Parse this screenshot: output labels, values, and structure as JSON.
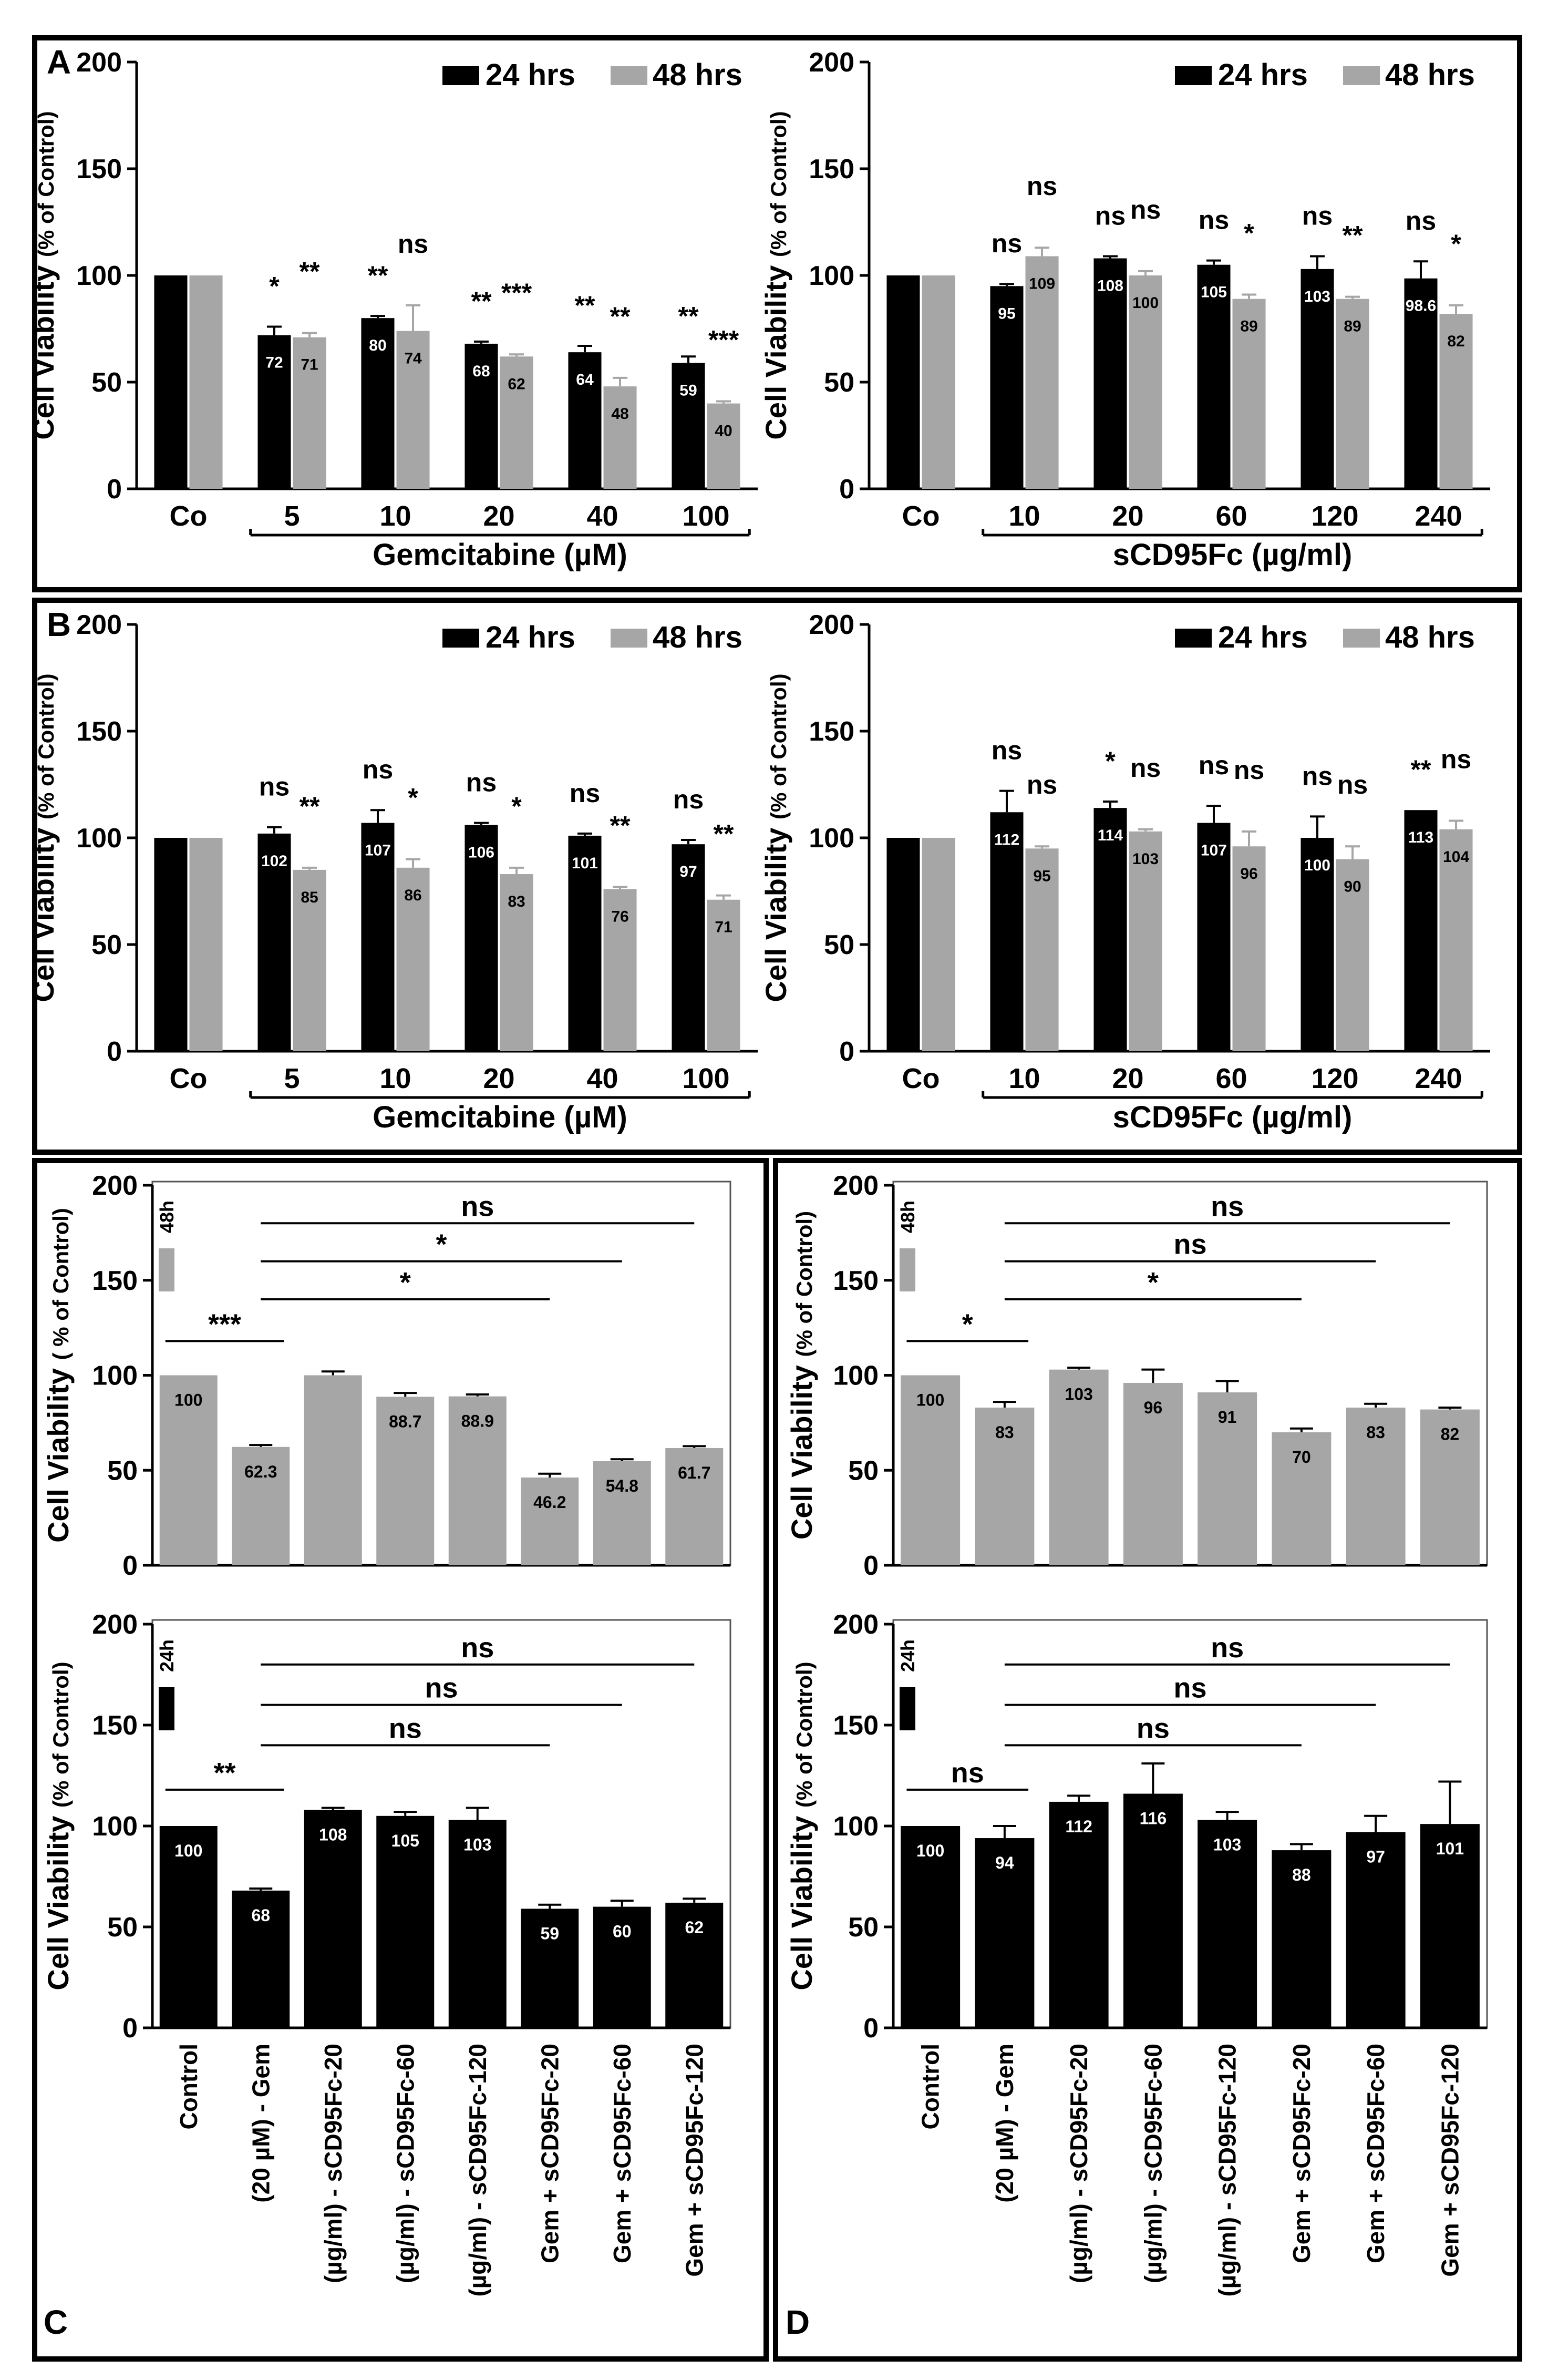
{
  "colors": {
    "black_series": "#000000",
    "gray_series": "#a6a6a6",
    "frame": "#000000"
  },
  "panel_letters": [
    "A",
    "B",
    "C",
    "D"
  ],
  "common": {
    "ylabel_main": "Cell Viability",
    "ylabel_sub": "(% of Control)",
    "ylabel_sub_alt": "( % of Control)",
    "yticks": [
      "0",
      "50",
      "100",
      "150",
      "200"
    ],
    "legend_24": "24 hrs",
    "legend_48": "48 hrs",
    "control_cat": "Co",
    "label_48h": "48h",
    "label_24h": "24h"
  },
  "chart_data": [
    {
      "id": "A-left",
      "panel": "A",
      "type": "bar",
      "ylim": [
        0,
        200
      ],
      "legend": "top-right",
      "xlabel": "Gemcitabine (µM)",
      "categories": [
        "Co",
        "5",
        "10",
        "20",
        "40",
        "100"
      ],
      "series": [
        {
          "name": "24 hrs",
          "values": [
            100,
            72,
            80,
            68,
            64,
            59
          ],
          "errors": [
            0,
            4,
            1,
            1,
            3,
            3
          ],
          "labels": [
            "",
            "72",
            "80",
            "68",
            "64",
            "59"
          ],
          "sig": [
            "",
            "*",
            "**",
            "**",
            "**",
            "**"
          ]
        },
        {
          "name": "48 hrs",
          "values": [
            100,
            71,
            74,
            62,
            48,
            40
          ],
          "errors": [
            0,
            2,
            12,
            1,
            4,
            1
          ],
          "labels": [
            "",
            "71",
            "74",
            "62",
            "48",
            "40"
          ],
          "sig": [
            "",
            "**",
            "ns",
            "***",
            "**",
            "***"
          ]
        }
      ]
    },
    {
      "id": "A-right",
      "panel": "A",
      "type": "bar",
      "ylim": [
        0,
        200
      ],
      "legend": "top-right",
      "xlabel": "sCD95Fc (µg/ml)",
      "categories": [
        "Co",
        "10",
        "20",
        "60",
        "120",
        "240"
      ],
      "series": [
        {
          "name": "24 hrs",
          "values": [
            100,
            95,
            108,
            105,
            103,
            98.6
          ],
          "errors": [
            0,
            1,
            1,
            2,
            6,
            8
          ],
          "labels": [
            "",
            "95",
            "108",
            "105",
            "103",
            "98.6"
          ],
          "sig": [
            "",
            "ns",
            "ns",
            "ns",
            "ns",
            "ns"
          ]
        },
        {
          "name": "48 hrs",
          "values": [
            100,
            109,
            100,
            89,
            89,
            82
          ],
          "errors": [
            0,
            4,
            2,
            2,
            1,
            4
          ],
          "labels": [
            "",
            "109",
            "100",
            "89",
            "89",
            "82"
          ],
          "sig": [
            "",
            "ns",
            "ns",
            "*",
            "**",
            "*"
          ]
        }
      ]
    },
    {
      "id": "B-left",
      "panel": "B",
      "type": "bar",
      "ylim": [
        0,
        200
      ],
      "legend": "top-right",
      "xlabel": "Gemcitabine (µM)",
      "categories": [
        "Co",
        "5",
        "10",
        "20",
        "40",
        "100"
      ],
      "series": [
        {
          "name": "24 hrs",
          "values": [
            100,
            102,
            107,
            106,
            101,
            97
          ],
          "errors": [
            0,
            3,
            6,
            1,
            1,
            2
          ],
          "labels": [
            "",
            "102",
            "107",
            "106",
            "101",
            "97"
          ],
          "sig": [
            "",
            "ns",
            "ns",
            "ns",
            "ns",
            "ns"
          ]
        },
        {
          "name": "48 hrs",
          "values": [
            100,
            85,
            86,
            83,
            76,
            71
          ],
          "errors": [
            0,
            1,
            4,
            3,
            1,
            2
          ],
          "labels": [
            "",
            "85",
            "86",
            "83",
            "76",
            "71"
          ],
          "sig": [
            "",
            "**",
            "*",
            "*",
            "**",
            "**"
          ]
        }
      ]
    },
    {
      "id": "B-right",
      "panel": "B",
      "type": "bar",
      "ylim": [
        0,
        200
      ],
      "legend": "top-right",
      "xlabel": "sCD95Fc (µg/ml)",
      "categories": [
        "Co",
        "10",
        "20",
        "60",
        "120",
        "240"
      ],
      "series": [
        {
          "name": "24 hrs",
          "values": [
            100,
            112,
            114,
            107,
            100,
            113
          ],
          "errors": [
            0,
            10,
            3,
            8,
            10,
            0
          ],
          "labels": [
            "",
            "112",
            "114",
            "107",
            "100",
            "113"
          ],
          "sig": [
            "",
            "ns",
            "*",
            "ns",
            "ns",
            "**"
          ]
        },
        {
          "name": "48 hrs",
          "values": [
            100,
            95,
            103,
            96,
            90,
            104
          ],
          "errors": [
            0,
            1,
            1,
            7,
            6,
            4
          ],
          "labels": [
            "",
            "95",
            "103",
            "96",
            "90",
            "104"
          ],
          "sig": [
            "",
            "ns",
            "ns",
            "ns",
            "ns",
            "ns"
          ]
        }
      ]
    },
    {
      "id": "C-48h",
      "panel": "C",
      "type": "bar",
      "ylim": [
        0,
        200
      ],
      "time": "48h",
      "categories": [
        "Control",
        "(20 µM) - Gem",
        "(µg/ml) - sCD95Fc-20",
        "(µg/ml) - sCD95Fc-60",
        "(µg/ml) - sCD95Fc-120",
        "Gem + sCD95Fc-20",
        "Gem + sCD95Fc-60",
        "Gem + sCD95Fc-120"
      ],
      "values": [
        100,
        62.3,
        100,
        88.7,
        88.9,
        46.2,
        54.8,
        61.7
      ],
      "errors": [
        0,
        1,
        2,
        2,
        1,
        2,
        1,
        1
      ],
      "labels": [
        "100",
        "62.3",
        "",
        "88.7",
        "88.9",
        "46.2",
        "54.8",
        "61.7"
      ],
      "comparisons": [
        {
          "from": 0,
          "to": 1,
          "label": "***"
        },
        {
          "from": 1,
          "to": 5,
          "label": "*"
        },
        {
          "from": 1,
          "to": 6,
          "label": "*"
        },
        {
          "from": 1,
          "to": 7,
          "label": "ns"
        }
      ]
    },
    {
      "id": "C-24h",
      "panel": "C",
      "type": "bar",
      "ylim": [
        0,
        200
      ],
      "time": "24h",
      "categories": [
        "Control",
        "(20 µM) - Gem",
        "(µg/ml) - sCD95Fc-20",
        "(µg/ml) - sCD95Fc-60",
        "(µg/ml) - sCD95Fc-120",
        "Gem + sCD95Fc-20",
        "Gem + sCD95Fc-60",
        "Gem + sCD95Fc-120"
      ],
      "values": [
        100,
        68,
        108,
        105,
        103,
        59,
        60,
        62
      ],
      "errors": [
        0,
        1,
        1,
        2,
        6,
        2,
        3,
        2
      ],
      "labels": [
        "100",
        "68",
        "108",
        "105",
        "103",
        "59",
        "60",
        "62"
      ],
      "comparisons": [
        {
          "from": 0,
          "to": 1,
          "label": "**"
        },
        {
          "from": 1,
          "to": 5,
          "label": "ns"
        },
        {
          "from": 1,
          "to": 6,
          "label": "ns"
        },
        {
          "from": 1,
          "to": 7,
          "label": "ns"
        }
      ]
    },
    {
      "id": "D-48h",
      "panel": "D",
      "type": "bar",
      "ylim": [
        0,
        200
      ],
      "time": "48h",
      "categories": [
        "Control",
        "(20 µM) - Gem",
        "(µg/ml) - sCD95Fc-20",
        "(µg/ml) - sCD95Fc-60",
        "(µg/ml) - sCD95Fc-120",
        "Gem + sCD95Fc-20",
        "Gem + sCD95Fc-60",
        "Gem + sCD95Fc-120"
      ],
      "values": [
        100,
        83,
        103,
        96,
        91,
        70,
        83,
        82
      ],
      "errors": [
        0,
        3,
        1,
        7,
        6,
        2,
        2,
        1
      ],
      "labels": [
        "100",
        "83",
        "103",
        "96",
        "91",
        "70",
        "83",
        "82"
      ],
      "comparisons": [
        {
          "from": 0,
          "to": 1,
          "label": "*"
        },
        {
          "from": 1,
          "to": 5,
          "label": "*"
        },
        {
          "from": 1,
          "to": 6,
          "label": "ns"
        },
        {
          "from": 1,
          "to": 7,
          "label": "ns"
        }
      ]
    },
    {
      "id": "D-24h",
      "panel": "D",
      "type": "bar",
      "ylim": [
        0,
        200
      ],
      "time": "24h",
      "categories": [
        "Control",
        "(20 µM) - Gem",
        "(µg/ml) - sCD95Fc-20",
        "(µg/ml) - sCD95Fc-60",
        "(µg/ml) - sCD95Fc-120",
        "Gem + sCD95Fc-20",
        "Gem + sCD95Fc-60",
        "Gem + sCD95Fc-120"
      ],
      "values": [
        100,
        94,
        112,
        116,
        103,
        88,
        97,
        101
      ],
      "errors": [
        0,
        6,
        3,
        15,
        4,
        3,
        8,
        21
      ],
      "labels": [
        "100",
        "94",
        "112",
        "116",
        "103",
        "88",
        "97",
        "101"
      ],
      "comparisons": [
        {
          "from": 0,
          "to": 1,
          "label": "ns"
        },
        {
          "from": 1,
          "to": 5,
          "label": "ns"
        },
        {
          "from": 1,
          "to": 6,
          "label": "ns"
        },
        {
          "from": 1,
          "to": 7,
          "label": "ns"
        }
      ]
    }
  ]
}
